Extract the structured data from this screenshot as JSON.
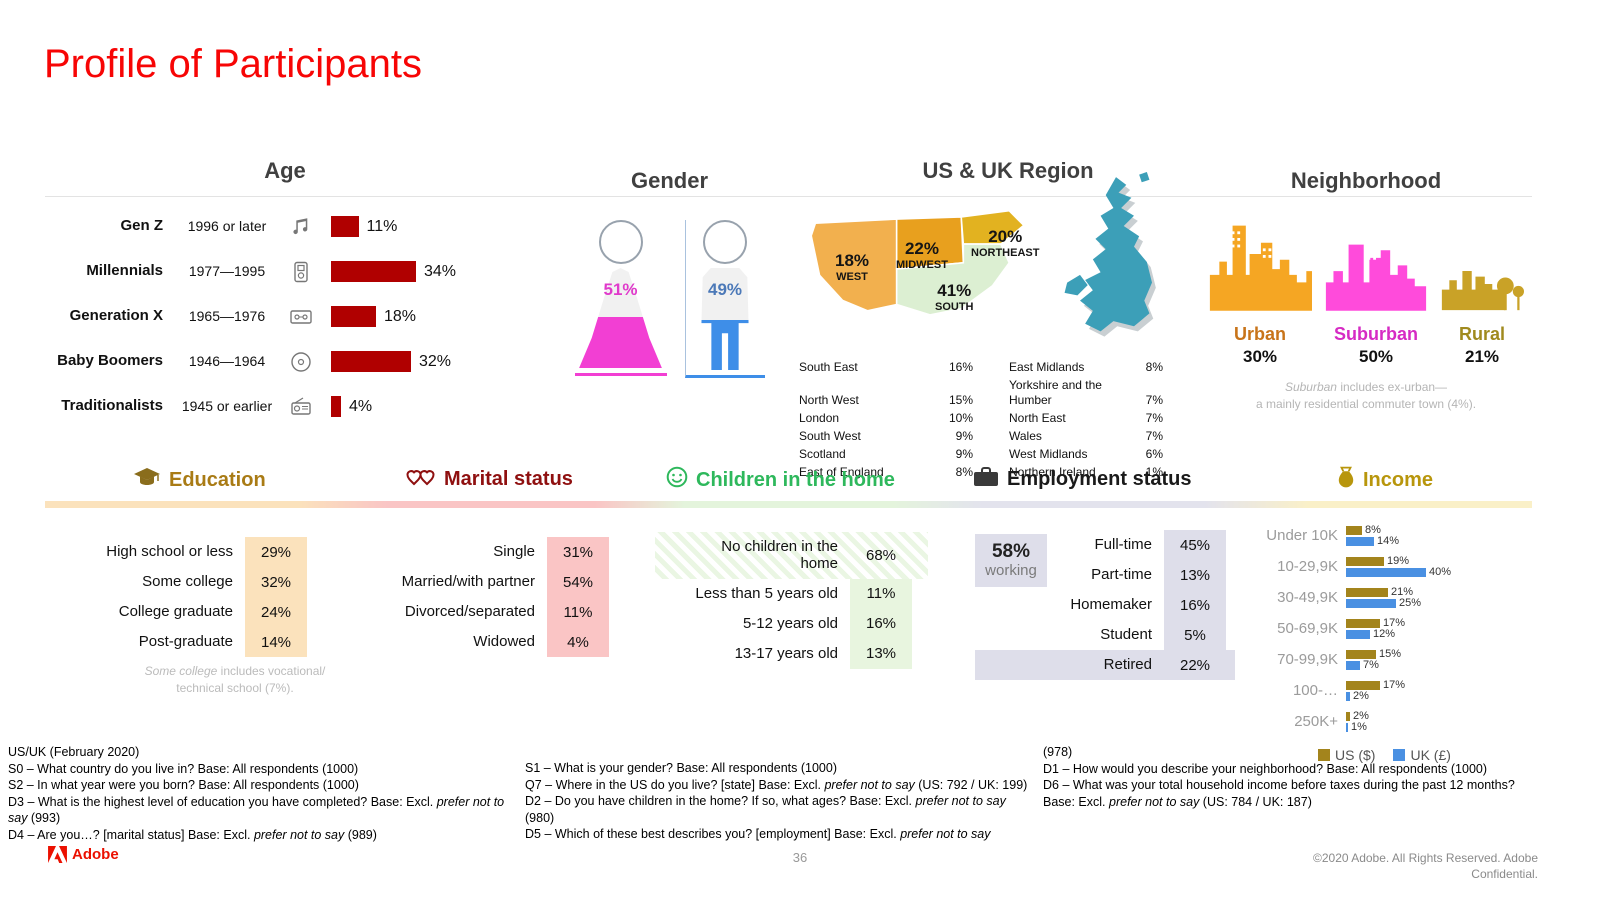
{
  "header": {
    "title": "Profile of Participants",
    "title_color": "#F70505"
  },
  "chart_data": [
    {
      "id": "age",
      "type": "bar",
      "title": "Age",
      "unit": "%",
      "bar_color": "#B00000",
      "rows": [
        {
          "label": "Gen Z",
          "years": "1996 or later",
          "icon": "music-notes-icon",
          "value": 11,
          "display": "11%"
        },
        {
          "label": "Millennials",
          "years": "1977—1995",
          "icon": "mp3-player-icon",
          "value": 34,
          "display": "34%"
        },
        {
          "label": "Generation X",
          "years": "1965—1976",
          "icon": "cassette-icon",
          "value": 18,
          "display": "18%"
        },
        {
          "label": "Baby Boomers",
          "years": "1946—1964",
          "icon": "cd-icon",
          "value": 32,
          "display": "32%"
        },
        {
          "label": "Traditionalists",
          "years": "1945 or earlier",
          "icon": "radio-icon",
          "value": 4,
          "display": "4%"
        }
      ]
    },
    {
      "id": "gender",
      "type": "pie",
      "title": "Gender",
      "slices": [
        {
          "label": "Female",
          "value": 51,
          "display": "51%",
          "color": "#F23FD3"
        },
        {
          "label": "Male",
          "value": 49,
          "display": "49%",
          "color": "#3E8EE8"
        }
      ]
    },
    {
      "id": "us-region",
      "type": "pie",
      "title": "US & UK Region",
      "regions": [
        {
          "label": "WEST",
          "value": 18,
          "display": "18%",
          "color": "#F2B04E"
        },
        {
          "label": "MIDWEST",
          "value": 22,
          "display": "22%",
          "color": "#E8A01E"
        },
        {
          "label": "NORTHEAST",
          "value": 20,
          "display": "20%",
          "color": "#E2B220"
        },
        {
          "label": "SOUTH",
          "value": 41,
          "display": "41%",
          "color": "#DCEFD2"
        }
      ]
    },
    {
      "id": "uk-region",
      "type": "table",
      "rows": [
        {
          "l_label": "South East",
          "l_value": "16%",
          "r_label": "East Midlands",
          "r_value": "8%"
        },
        {
          "l_label": "North West",
          "l_value": "15%",
          "r_label": "Yorkshire and the Humber",
          "r_value": "7%"
        },
        {
          "l_label": "London",
          "l_value": "10%",
          "r_label": "North East",
          "r_value": "7%"
        },
        {
          "l_label": "South West",
          "l_value": "9%",
          "r_label": "Wales",
          "r_value": "7%"
        },
        {
          "l_label": "Scotland",
          "l_value": "9%",
          "r_label": "West Midlands",
          "r_value": "6%"
        },
        {
          "l_label": "East of England",
          "l_value": "8%",
          "r_label": "Northern Ireland",
          "r_value": "1%"
        }
      ]
    },
    {
      "id": "neighborhood",
      "type": "pie",
      "title": "Neighborhood",
      "items": [
        {
          "label": "Urban",
          "value": 30,
          "display": "30%",
          "color": "#F5A623",
          "label_color": "#C8741A"
        },
        {
          "label": "Suburban",
          "value": 50,
          "display": "50%",
          "color": "#FF4BDB",
          "label_color": "#D62BC4"
        },
        {
          "label": "Rural",
          "value": 21,
          "display": "21%",
          "color": "#C9A227",
          "label_color": "#A08A1E"
        }
      ],
      "note_line1": "*Suburban* includes ex-urban—",
      "note_line2": "a mainly residential commuter town (4%)."
    },
    {
      "id": "education",
      "type": "bar",
      "title": "Education",
      "accent": "#A97B15",
      "chip_bg": "#FBE2BC",
      "rows": [
        {
          "label": "High school or less",
          "value": 29,
          "display": "29%"
        },
        {
          "label": "Some college",
          "value": 32,
          "display": "32%"
        },
        {
          "label": "College graduate",
          "value": 24,
          "display": "24%"
        },
        {
          "label": "Post-graduate",
          "value": 14,
          "display": "14%"
        }
      ],
      "note_line1": "*Some college* includes vocational/",
      "note_line2": "technical school (7%)."
    },
    {
      "id": "marital-status",
      "type": "bar",
      "title": "Marital status",
      "accent": "#8F1010",
      "chip_bg": "#FAC5C5",
      "rows": [
        {
          "label": "Single",
          "value": 31,
          "display": "31%"
        },
        {
          "label": "Married/with partner",
          "value": 54,
          "display": "54%"
        },
        {
          "label": "Divorced/separated",
          "value": 11,
          "display": "11%"
        },
        {
          "label": "Widowed",
          "value": 4,
          "display": "4%"
        }
      ]
    },
    {
      "id": "children-in-home",
      "type": "bar",
      "title": "Children in the home",
      "accent": "#2EB85C",
      "chip_bg": "#E8F5DF",
      "rows": [
        {
          "label": "No children in the home",
          "value": 68,
          "display": "68%"
        },
        {
          "label": "Less than 5 years old",
          "value": 11,
          "display": "11%"
        },
        {
          "label": "5-12 years old",
          "value": 16,
          "display": "16%"
        },
        {
          "label": "13-17 years old",
          "value": 13,
          "display": "13%"
        }
      ]
    },
    {
      "id": "employment",
      "type": "bar",
      "title": "Employment status",
      "accent": "#1A1A1A",
      "chip_bg": "#DEDEEA",
      "badge": {
        "value": "58%",
        "label": "working"
      },
      "rows": [
        {
          "label": "Full-time",
          "value": 45,
          "display": "45%"
        },
        {
          "label": "Part-time",
          "value": 13,
          "display": "13%"
        },
        {
          "label": "Homemaker",
          "value": 16,
          "display": "16%"
        },
        {
          "label": "Student",
          "value": 5,
          "display": "5%"
        },
        {
          "label": "Retired",
          "value": 22,
          "display": "22%"
        }
      ]
    },
    {
      "id": "income",
      "type": "bar",
      "title": "Income",
      "categories": [
        "Under 10K",
        "10-29,9K",
        "30-49,9K",
        "50-69,9K",
        "70-99,9K",
        "100-…",
        "250K+"
      ],
      "series": [
        {
          "name": "US ($)",
          "color": "#A3841C",
          "values": [
            8,
            19,
            21,
            17,
            15,
            17,
            2
          ],
          "displays": [
            "8%",
            "19%",
            "21%",
            "17%",
            "15%",
            "17%",
            "2%"
          ]
        },
        {
          "name": "UK (£)",
          "color": "#4A90E2",
          "values": [
            14,
            40,
            25,
            12,
            7,
            2,
            1
          ],
          "displays": [
            "14%",
            "40%",
            "25%",
            "12%",
            "7%",
            "2%",
            "1%"
          ]
        }
      ],
      "legend_position": "bottom"
    }
  ],
  "footnotes": {
    "col1": [
      "US/UK (February 2020)",
      "S0 – What country do you live in? Base: All respondents (1000)",
      "S2 – In what year were you born? Base: All respondents (1000)",
      "D3 – What is the highest level of education you have completed? Base: Excl. *prefer not to say* (993)",
      "D4 – Are you…? [marital status] Base: Excl. *prefer not to say* (989)"
    ],
    "col2": [
      "S1 – What is your gender? Base: All respondents (1000)",
      "Q7 – Where in the US do you live? [state] Base: Excl. *prefer not to say* (US: 792 / UK: 199)",
      "D2 – Do you have children in the home? If so, what ages? Base: Excl. *prefer not to say* (980)",
      "D5 – Which of these best describes you? [employment] Base: Excl. *prefer not to say*"
    ],
    "col3": [
      "(978)",
      "D1 – How would you describe your neighborhood? Base: All respondents (1000)",
      "D6 – What was your total household income before taxes during the past 12 months? Base: Excl. *prefer not to say* (US: 784 / UK: 187)"
    ]
  },
  "footer": {
    "page_number": "36",
    "copyright": "©2020 Adobe. All Rights Reserved. Adobe Confidential.",
    "logo_text": "Adobe"
  }
}
